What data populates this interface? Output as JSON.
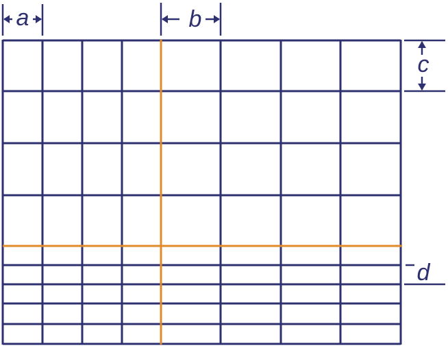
{
  "dimensions": [
    {
      "label": "a"
    },
    {
      "label": "b"
    },
    {
      "label": "c"
    },
    {
      "label": "d"
    }
  ]
}
